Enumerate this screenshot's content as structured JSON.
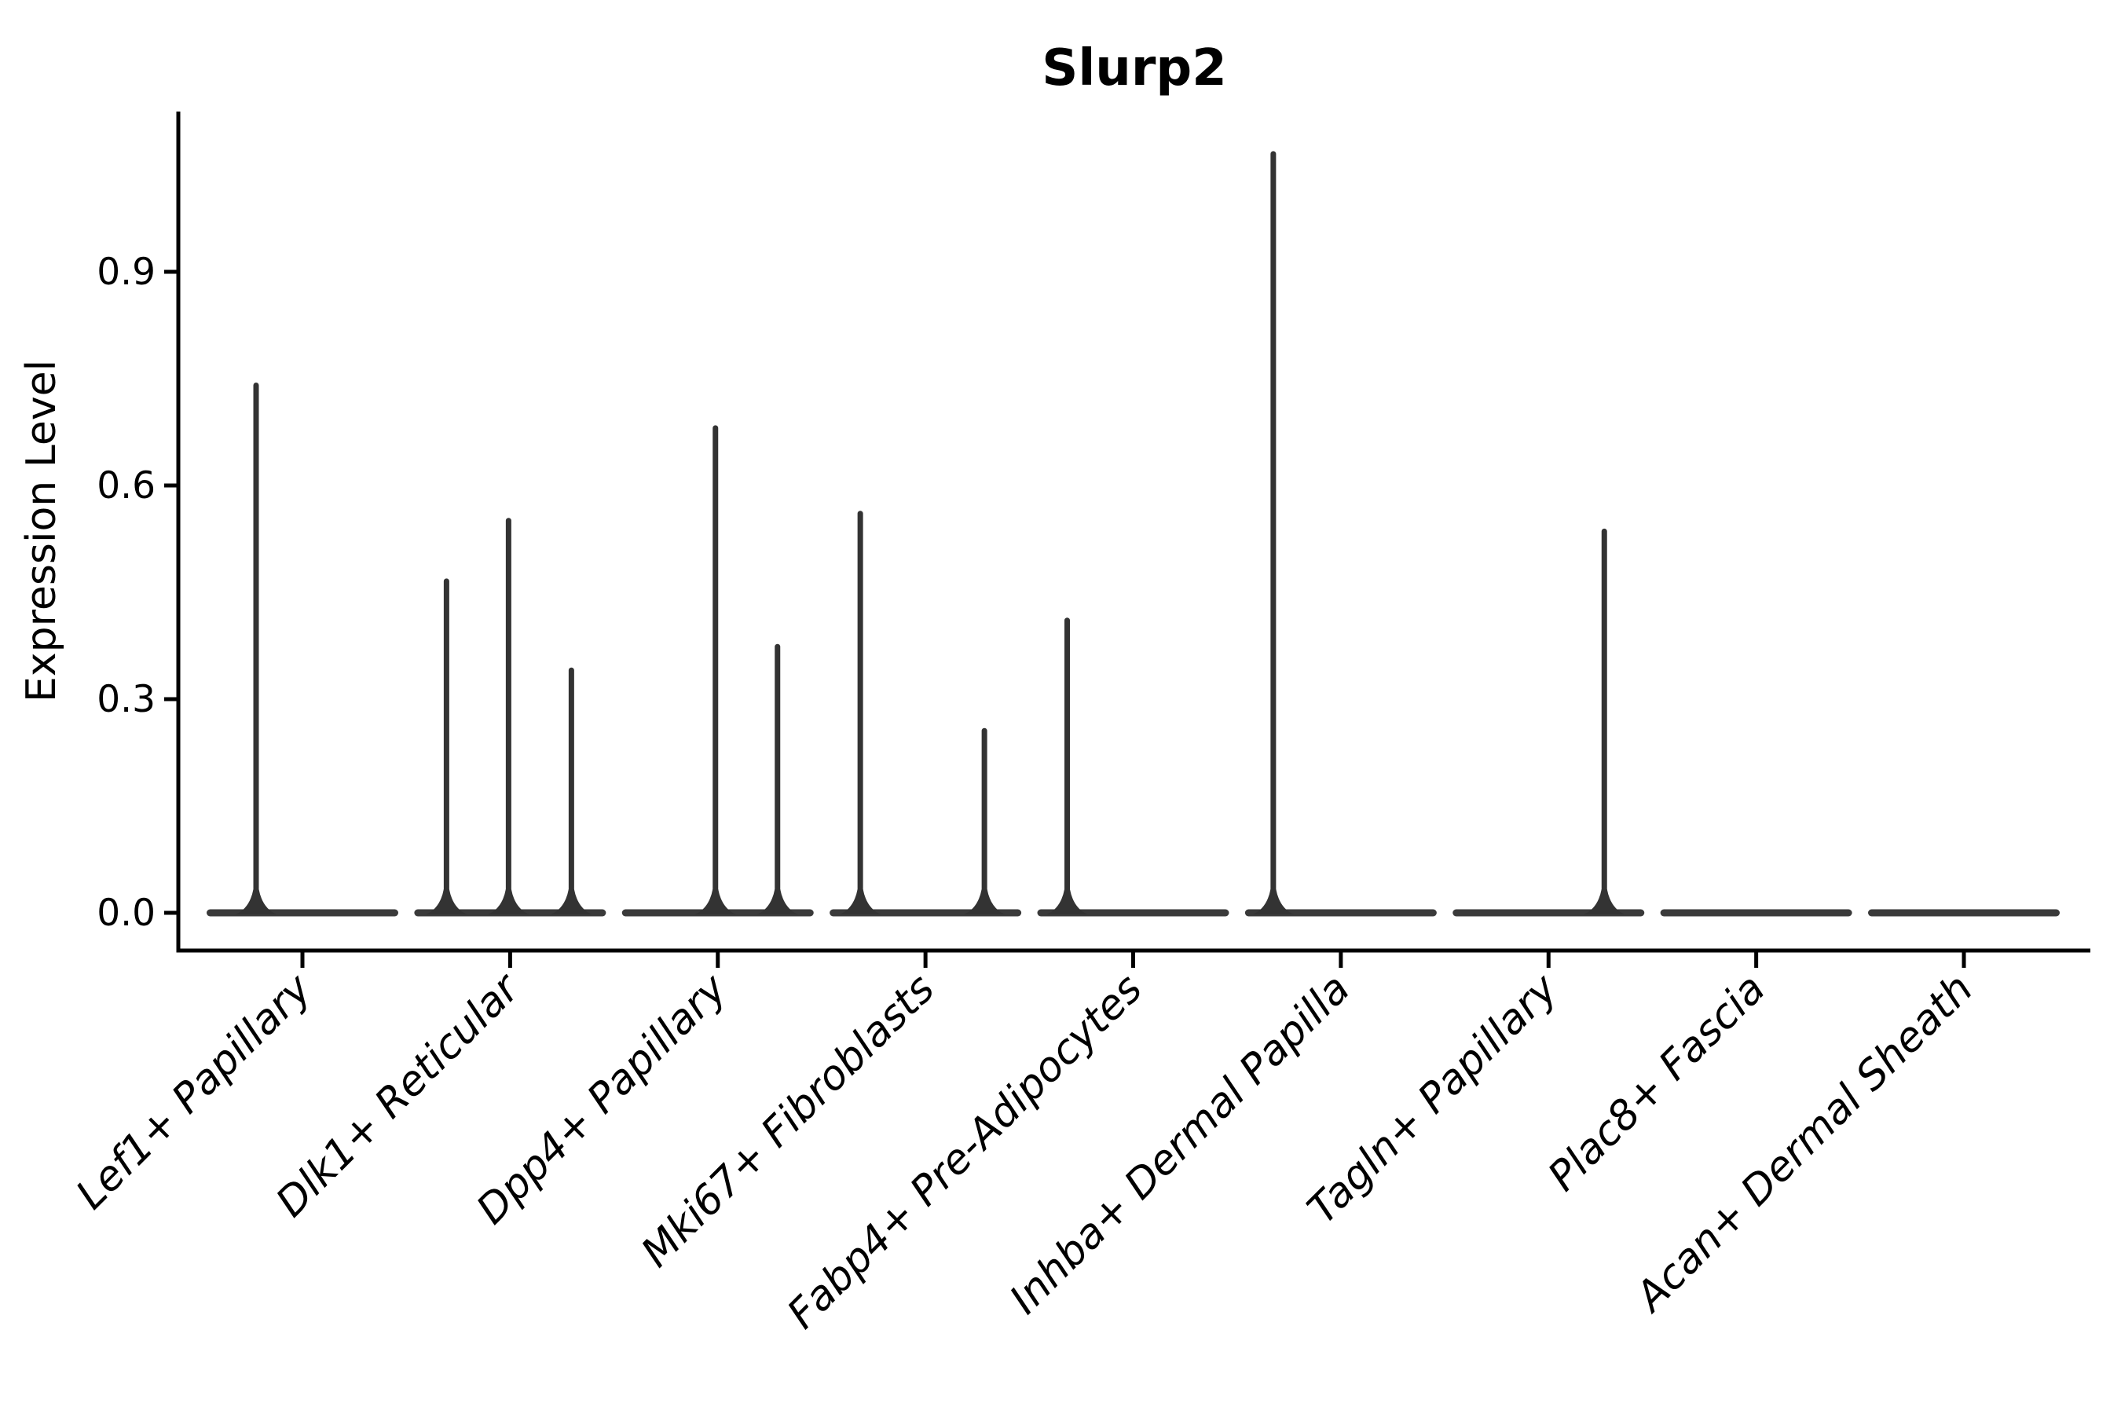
{
  "chart_data": {
    "type": "violin",
    "title": "Slurp2",
    "title_weight": "bold",
    "xlabel": "",
    "ylabel": "Expression Level",
    "yticks": {
      "values": [
        0.0,
        0.3,
        0.6,
        0.9
      ],
      "labels": [
        "0.0",
        "0.3",
        "0.6",
        "0.9"
      ]
    },
    "ylim": [
      -0.053,
      1.125
    ],
    "grid": false,
    "legend": "none",
    "x_tick_label_rotation_deg": 45,
    "x_tick_label_style": "italic",
    "categories": [
      "Lef1+ Papillary",
      "Dlk1+ Reticular",
      "Dpp4+ Papillary",
      "Mki67+ Fibroblasts",
      "Fabp4+ Pre-Adipocytes",
      "Inhba+ Dermal Papilla",
      "Tagln+ Papillary",
      "Plac8+ Fascia",
      "Acan+ Dermal Sheath"
    ],
    "violins": [
      {
        "category": "Lef1+ Papillary",
        "base_value": 0.0,
        "spikes": [
          {
            "dx": -59,
            "max": 0.745
          }
        ]
      },
      {
        "category": "Dlk1+ Reticular",
        "base_value": 0.0,
        "spikes": [
          {
            "dx": -81,
            "max": 0.47
          },
          {
            "dx": -2,
            "max": 0.555
          },
          {
            "dx": 78,
            "max": 0.345
          }
        ]
      },
      {
        "category": "Dpp4+ Papillary",
        "base_value": 0.0,
        "spikes": [
          {
            "dx": -3,
            "max": 0.685
          },
          {
            "dx": 76,
            "max": 0.378
          }
        ]
      },
      {
        "category": "Mki67+ Fibroblasts",
        "base_value": 0.0,
        "spikes": [
          {
            "dx": -83,
            "max": 0.565
          },
          {
            "dx": 75,
            "max": 0.26
          }
        ]
      },
      {
        "category": "Fabp4+ Pre-Adipocytes",
        "base_value": 0.0,
        "spikes": [
          {
            "dx": -84,
            "max": 0.415
          }
        ]
      },
      {
        "category": "Inhba+ Dermal Papilla",
        "base_value": 0.0,
        "spikes": [
          {
            "dx": -86,
            "max": 1.07
          }
        ]
      },
      {
        "category": "Tagln+ Papillary",
        "base_value": 0.0,
        "spikes": [
          {
            "dx": 71,
            "max": 0.54
          }
        ]
      },
      {
        "category": "Plac8+ Fascia",
        "base_value": 0.0,
        "spikes": []
      },
      {
        "category": "Acan+ Dermal Sheath",
        "base_value": 0.0,
        "spikes": []
      }
    ],
    "colors": {
      "violin": "#333333",
      "violin_base": "#3a3a3a",
      "axis": "#000000",
      "text": "#000000",
      "background": "#ffffff"
    }
  }
}
